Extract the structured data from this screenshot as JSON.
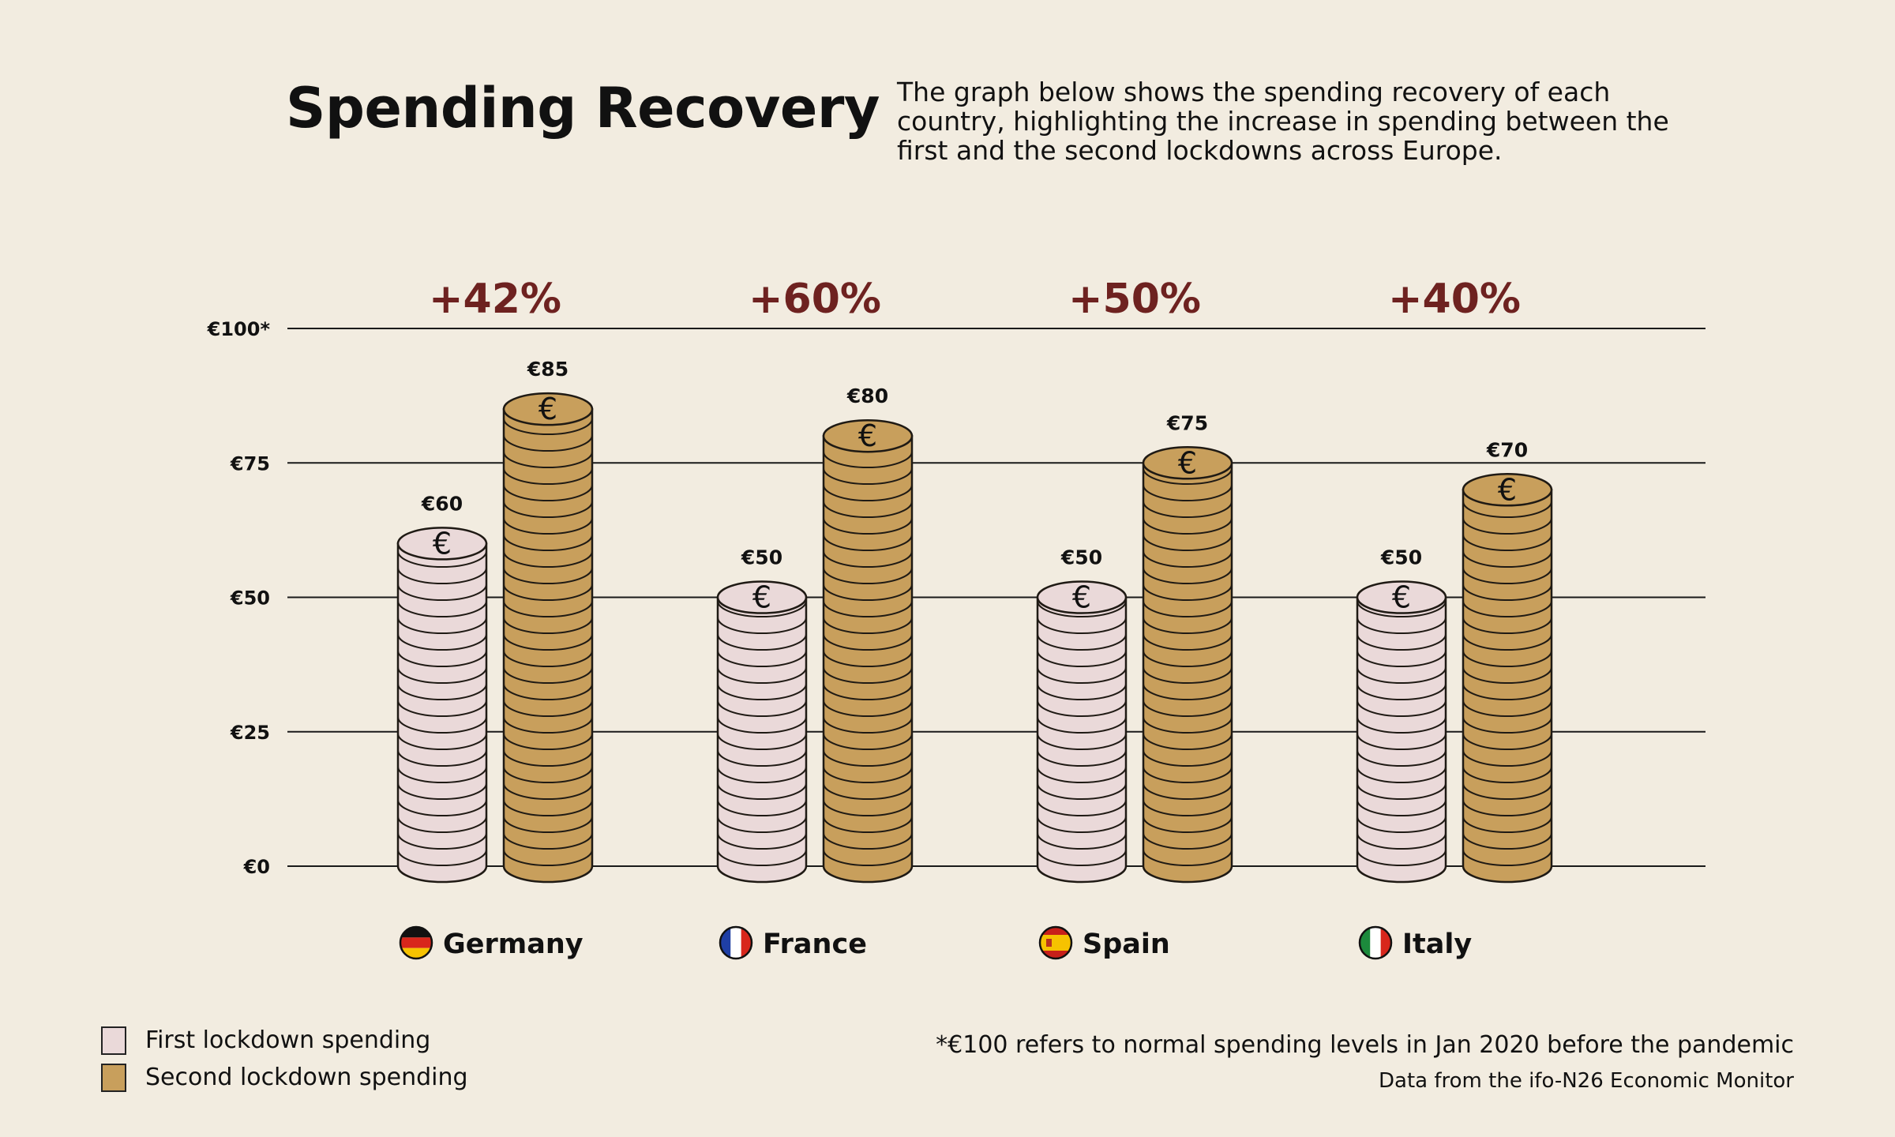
{
  "title": "Spending Recovery",
  "subtitle": "The graph below shows the spending recovery of each country, highlighting the increase in spending between the first and the second lockdowns across Europe.",
  "footnote": "*€100 refers to normal spending levels in Jan 2020 before the pandemic",
  "source": "Data from the ifo-N26 Economic Monitor",
  "colors": {
    "background": "#f2ece0",
    "first": "#ead9d9",
    "second": "#c89f5c",
    "change": "#6e2220",
    "stroke": "#1f1a14"
  },
  "chart_data": {
    "type": "bar",
    "categories": [
      "Germany",
      "France",
      "Spain",
      "Italy"
    ],
    "category_flags": [
      "flag-germany-icon",
      "flag-france-icon",
      "flag-spain-icon",
      "flag-italy-icon"
    ],
    "series": [
      {
        "name": "First lockdown spending",
        "values": [
          60,
          50,
          50,
          50
        ],
        "labels": [
          "€60",
          "€50",
          "€50",
          "€50"
        ]
      },
      {
        "name": "Second lockdown spending",
        "values": [
          85,
          80,
          75,
          70
        ],
        "labels": [
          "€85",
          "€80",
          "€75",
          "€70"
        ]
      }
    ],
    "change_labels": [
      "+42%",
      "+60%",
      "+50%",
      "+40%"
    ],
    "y_ticks": [
      0,
      25,
      50,
      75,
      100
    ],
    "y_tick_labels": [
      "€0",
      "€25",
      "€50",
      "€75",
      "€100*"
    ],
    "ylim": [
      0,
      100
    ],
    "grid": true,
    "legend_position": "bottom-left",
    "coin_symbol": "€"
  }
}
